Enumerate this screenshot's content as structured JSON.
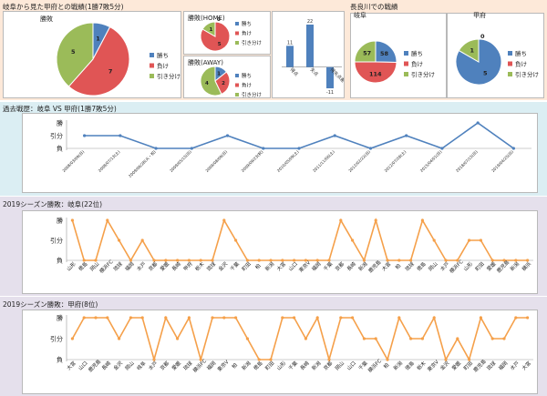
{
  "titles": {
    "vs_title": "岐阜から見た甲府との戦績(1勝7敗5分)",
    "nagara_title": "長良川での戦績",
    "history_title": "過去戦歴：岐阜 VS 甲府(1勝7敗5分)",
    "gifu_title": "2019シーズン勝敗：岐阜(22位)",
    "kofu_title": "2019シーズン勝敗：甲府(8位)"
  },
  "colors": {
    "win": "#4f81bd",
    "lose": "#e05555",
    "draw": "#9bbb59",
    "line_blue": "#4f81bd",
    "line_orange": "#f5a04a"
  },
  "chart_data": [
    {
      "id": "pie_total",
      "type": "pie",
      "title": "勝敗",
      "labels": [
        "勝ち",
        "負け",
        "引き分け"
      ],
      "values": [
        1,
        7,
        5
      ]
    },
    {
      "id": "pie_home",
      "type": "pie",
      "title": "勝敗(HOME)",
      "labels": [
        "勝ち",
        "負け",
        "引き分け"
      ],
      "values": [
        0,
        5,
        1
      ]
    },
    {
      "id": "pie_away",
      "type": "pie",
      "title": "勝敗(AWAY)",
      "labels": [
        "勝ち",
        "負け",
        "引き分け"
      ],
      "values": [
        1,
        2,
        4
      ]
    },
    {
      "id": "bar_goals",
      "type": "bar",
      "categories": [
        "得点",
        "失点",
        "得失点差"
      ],
      "values": [
        11,
        22,
        -11
      ],
      "ylim": [
        -11,
        22
      ]
    },
    {
      "id": "pie_nagara_gifu",
      "type": "pie",
      "title": "岐阜",
      "labels": [
        "勝ち",
        "負け",
        "引き分け"
      ],
      "values": [
        58,
        114,
        57
      ]
    },
    {
      "id": "pie_nagara_kofu",
      "type": "pie",
      "title": "甲府",
      "labels": [
        "勝ち",
        "負け",
        "引き分け"
      ],
      "values": [
        5,
        0,
        1
      ]
    },
    {
      "id": "history",
      "type": "line",
      "y_levels": [
        "負",
        "引分",
        "勝"
      ],
      "x": [
        "2008/03/09(日)",
        "2008/07/13(土)",
        "2009/06/28(火・祝)",
        "2009/05/15(日)",
        "2009/08/09(日)",
        "2009/09/23(祝)",
        "2010/05/09(土)",
        "2011/11/06(土)",
        "2012/02/22(日)",
        "2012/07/28(土)",
        "2015/04/01(日)",
        "2018/07/15(日)",
        "2019/04/25(日)"
      ],
      "values": [
        0.5,
        0.5,
        0,
        0,
        0.5,
        0,
        0,
        0.5,
        0,
        0.5,
        0,
        1,
        0
      ]
    },
    {
      "id": "season_gifu",
      "type": "line",
      "y_levels": [
        "負",
        "引分",
        "勝"
      ],
      "x": [
        "山形",
        "徳島",
        "岡山",
        "横浜FC",
        "琉球",
        "福岡",
        "水戸",
        "京都",
        "愛媛",
        "長崎",
        "甲府",
        "栃木",
        "琉球",
        "金沢",
        "千葉",
        "町田",
        "柏",
        "新潟",
        "大宮",
        "山口",
        "東京V",
        "福岡",
        "千葉",
        "京都",
        "長崎",
        "新潟",
        "鹿児島",
        "大宮",
        "柏",
        "琉球",
        "徳島",
        "岡山",
        "水戸",
        "横浜FC",
        "山形",
        "町田",
        "愛媛",
        "鹿児島",
        "新潟",
        "横浜"
      ],
      "values": [
        1,
        0,
        0,
        1,
        0.5,
        0,
        0.5,
        0,
        0,
        0,
        0,
        0,
        0,
        1,
        0.5,
        0,
        0,
        0,
        0,
        0,
        0,
        0,
        0,
        1,
        0.5,
        0,
        1,
        0,
        0,
        0,
        1,
        0.5,
        0,
        0,
        0.5,
        0.5,
        0,
        0,
        0,
        0
      ]
    },
    {
      "id": "season_kofu",
      "type": "line",
      "y_levels": [
        "負",
        "引分",
        "勝"
      ],
      "x": [
        "大宮",
        "山口",
        "鹿児島",
        "長崎",
        "金沢",
        "岡山",
        "岐阜",
        "水戸",
        "京都",
        "愛媛",
        "琉球",
        "横浜FC",
        "福岡",
        "東京V",
        "柏",
        "新潟",
        "徳島",
        "町田",
        "山形",
        "千葉",
        "長崎",
        "新潟",
        "京都",
        "岡山",
        "山口",
        "千葉",
        "横浜FC",
        "柏",
        "新潟",
        "徳島",
        "栃木",
        "東京V",
        "金沢",
        "愛媛",
        "町田",
        "鹿児島",
        "琉球",
        "福岡",
        "水戸",
        "大宮"
      ],
      "values": [
        0.5,
        1,
        1,
        1,
        0.5,
        1,
        1,
        0,
        1,
        0.5,
        1,
        0,
        1,
        1,
        1,
        0.5,
        0,
        0,
        1,
        1,
        0.5,
        1,
        0,
        1,
        1,
        0.5,
        0.5,
        0,
        1,
        0.5,
        0.5,
        1,
        0,
        0.5,
        0,
        1,
        0.5,
        0.5,
        1,
        1
      ]
    }
  ]
}
